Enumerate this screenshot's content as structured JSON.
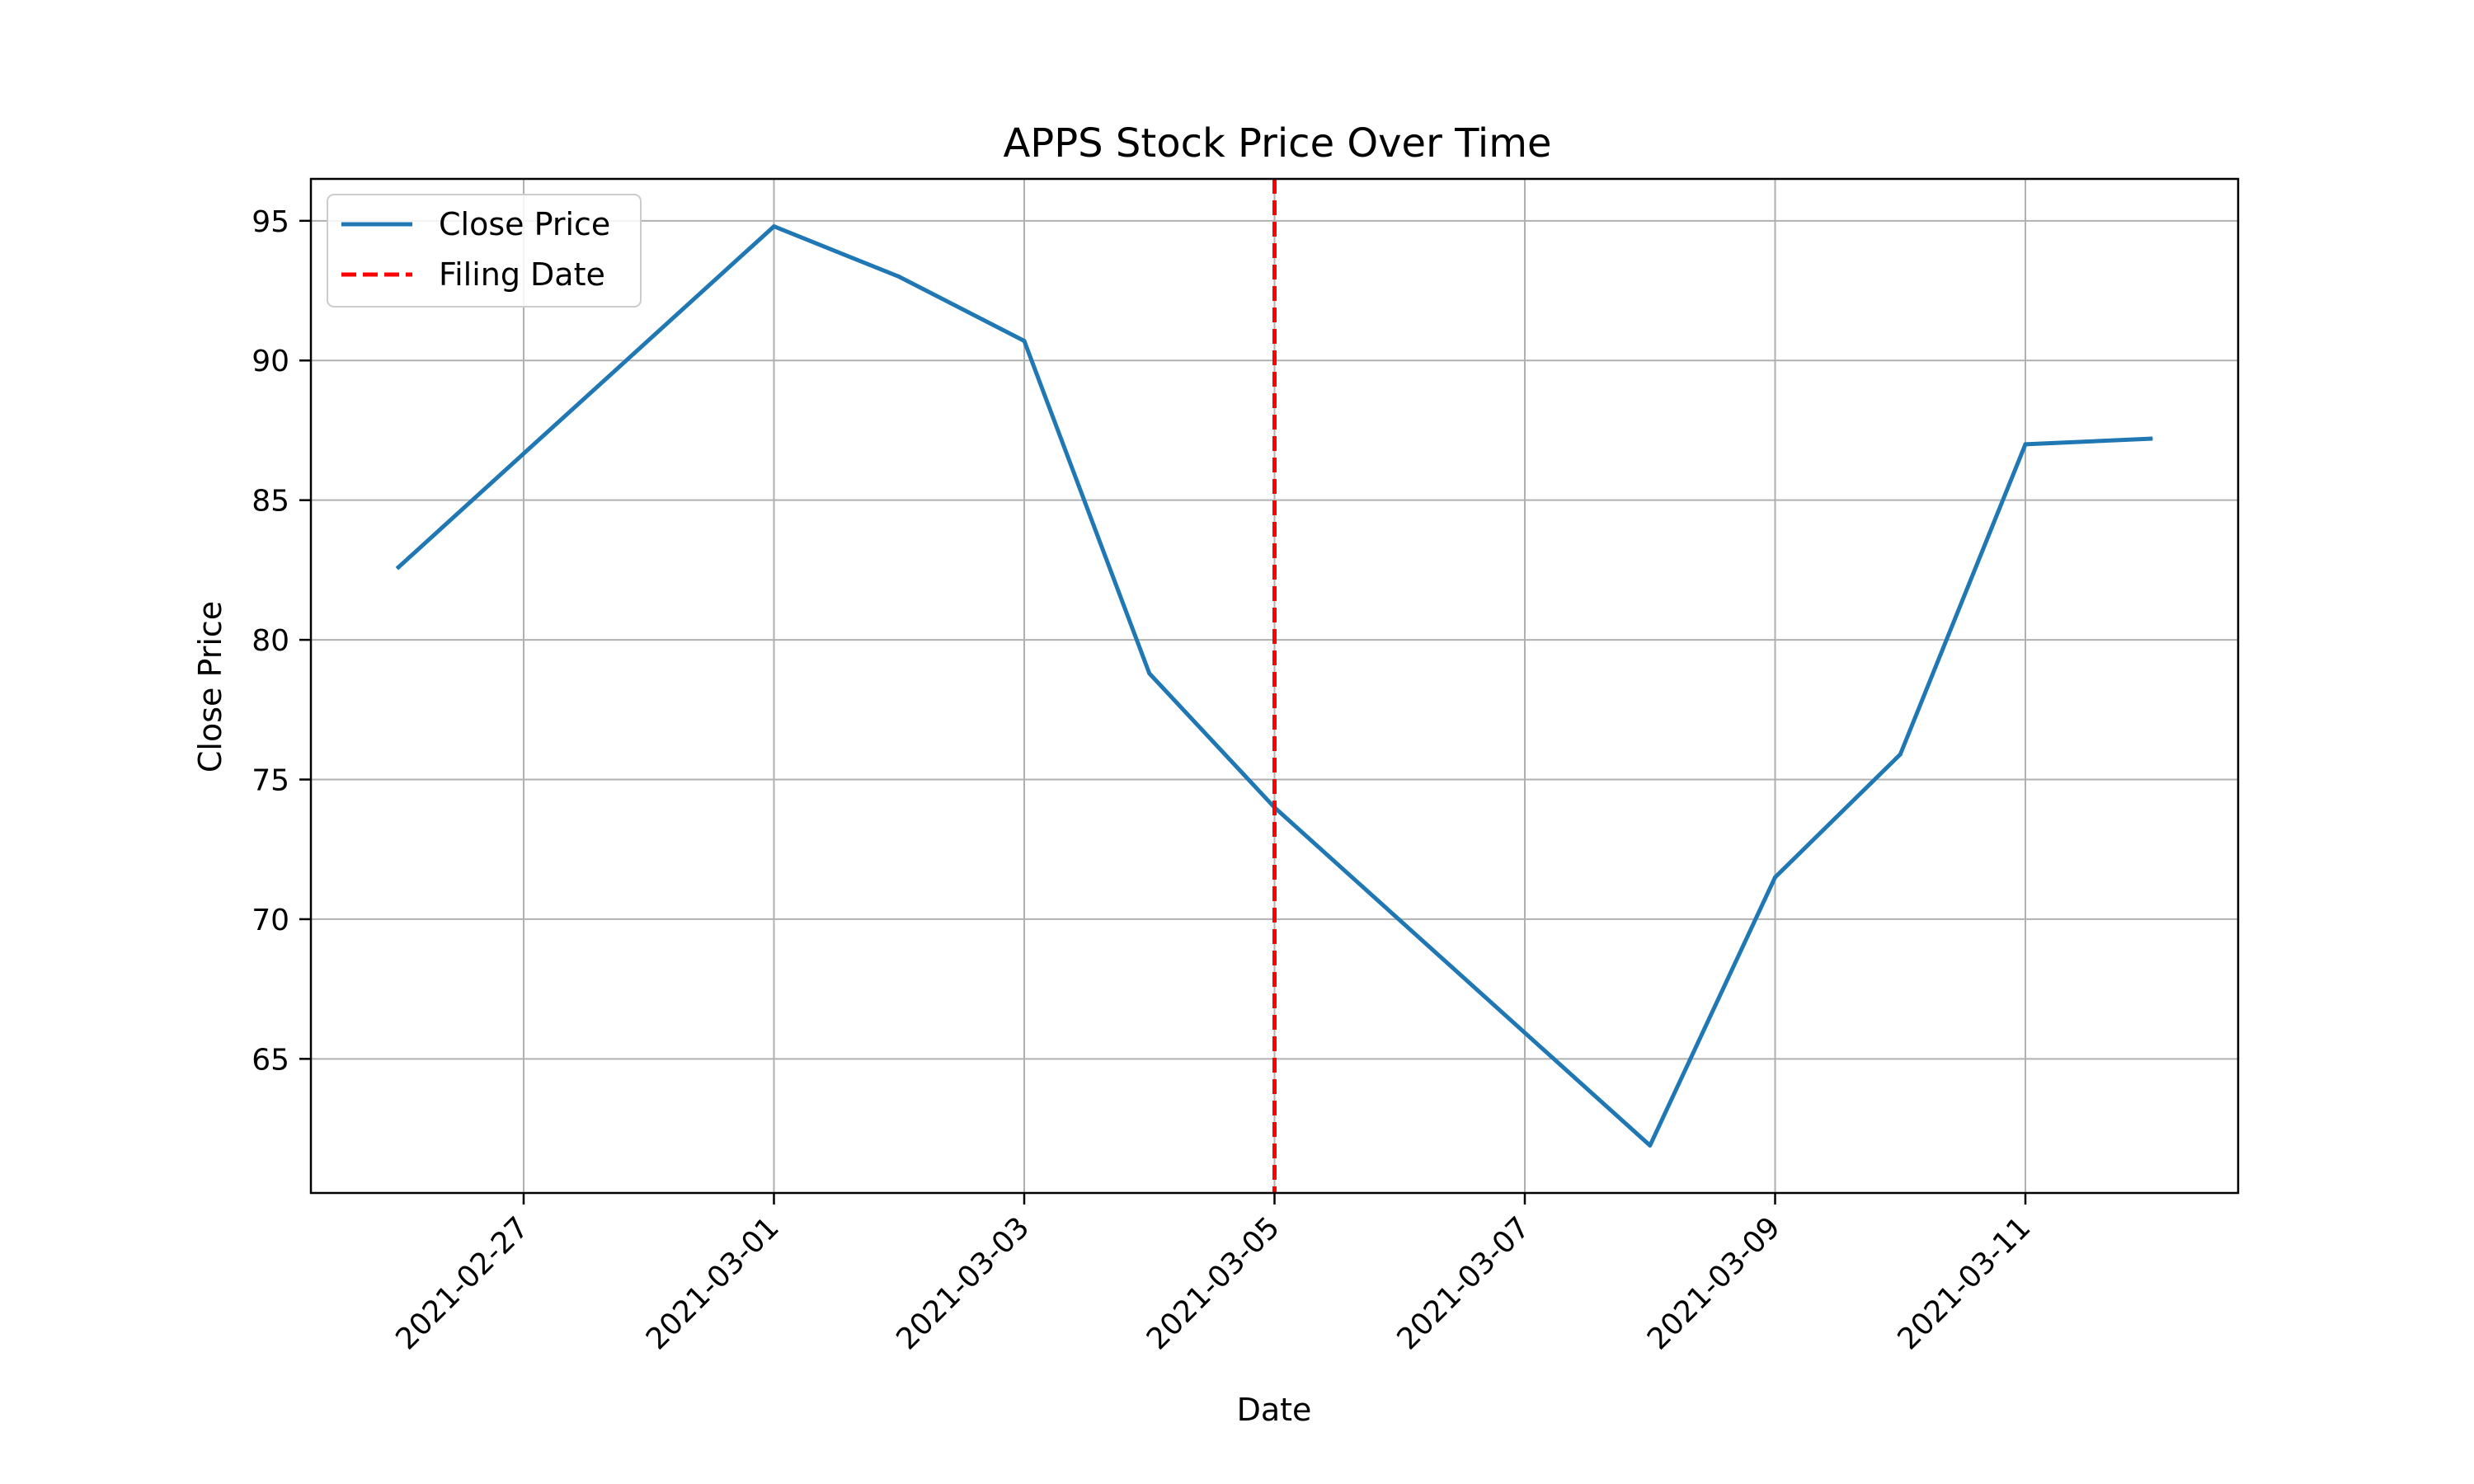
{
  "chart_data": {
    "type": "line",
    "title": "APPS Stock Price Over Time",
    "xlabel": "Date",
    "ylabel": "Close Price",
    "x": [
      "2021-02-26",
      "2021-03-01",
      "2021-03-02",
      "2021-03-03",
      "2021-03-04",
      "2021-03-05",
      "2021-03-08",
      "2021-03-09",
      "2021-03-10",
      "2021-03-11",
      "2021-03-12"
    ],
    "series": [
      {
        "name": "Close Price",
        "color": "#1f77b4",
        "values": [
          82.6,
          94.8,
          93.0,
          90.7,
          78.8,
          74.0,
          61.9,
          71.5,
          75.9,
          87.0,
          87.2
        ]
      }
    ],
    "vline": {
      "name": "Filing Date",
      "x": "2021-03-05",
      "color": "#ff0000",
      "style": "dashed"
    },
    "xticks": [
      "2021-02-27",
      "2021-03-01",
      "2021-03-03",
      "2021-03-05",
      "2021-03-07",
      "2021-03-09",
      "2021-03-11"
    ],
    "yticks": [
      65,
      70,
      75,
      80,
      85,
      90,
      95
    ],
    "xlim": [
      "2021-02-25.3",
      "2021-03-12.7"
    ],
    "ylim": [
      60.2,
      96.5
    ],
    "grid": true,
    "legend": "upper-left"
  }
}
